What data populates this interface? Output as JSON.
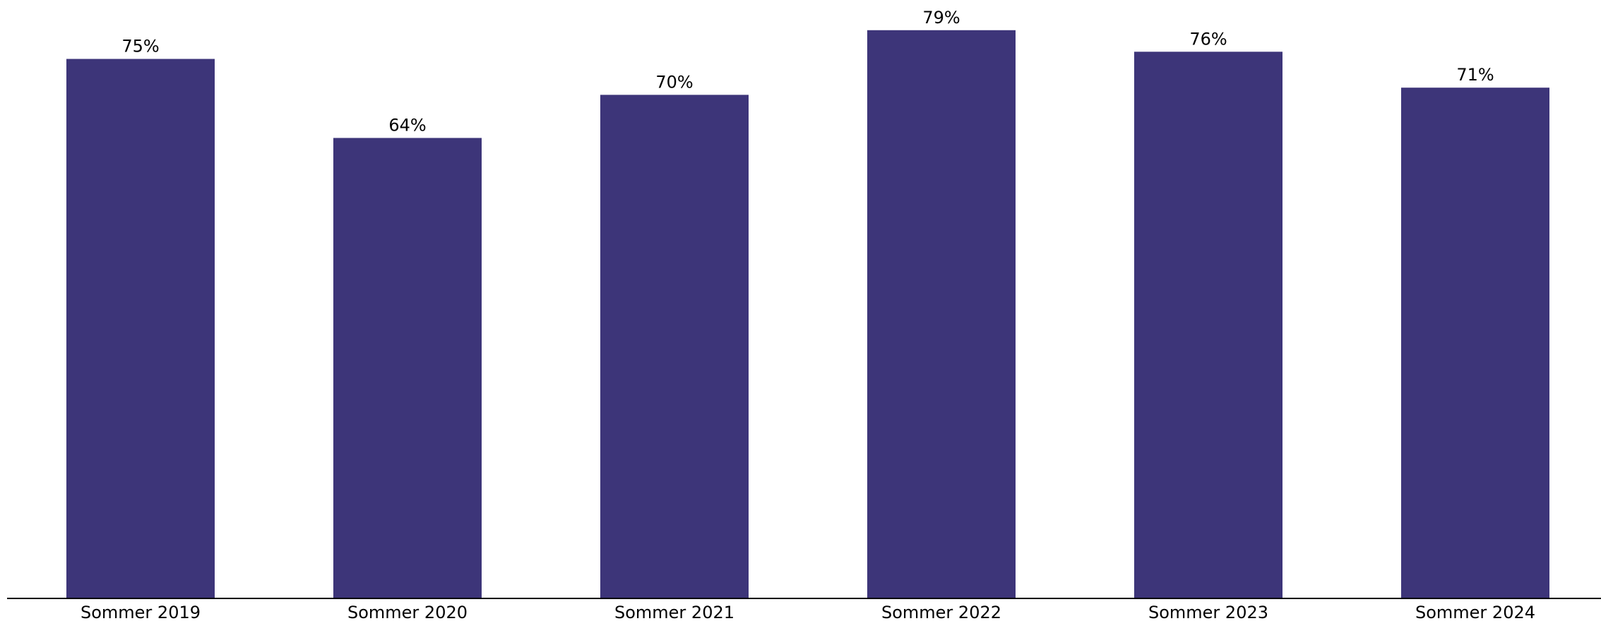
{
  "chart_data": {
    "type": "bar",
    "categories": [
      "Sommer 2019",
      "Sommer 2020",
      "Sommer 2021",
      "Sommer 2022",
      "Sommer 2023",
      "Sommer 2024"
    ],
    "values": [
      75,
      64,
      70,
      79,
      76,
      71
    ],
    "value_labels": [
      "75%",
      "64%",
      "70%",
      "79%",
      "76%",
      "71%"
    ],
    "unit": "%",
    "title": "",
    "xlabel": "",
    "ylabel": "",
    "ylim": [
      0,
      80
    ],
    "grid": false,
    "legend": "none",
    "bar_color": "#3d3579",
    "axis_color": "#000000"
  }
}
